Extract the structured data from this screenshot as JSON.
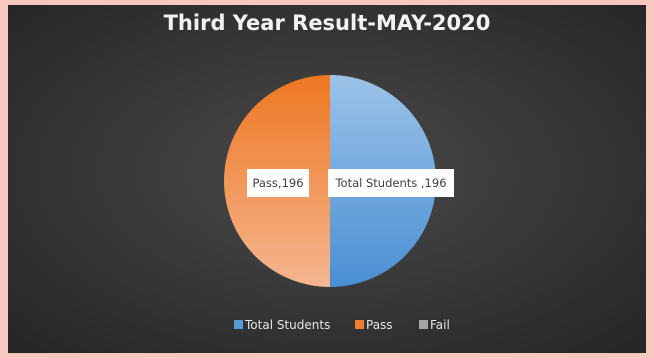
{
  "chart_data": {
    "type": "pie",
    "title": "Third Year Result-MAY-2020",
    "categories": [
      "Total Students",
      "Pass",
      "Fail"
    ],
    "values": [
      196,
      196,
      0
    ],
    "data_labels": [
      "Total Students ,196",
      "Pass,196",
      ""
    ],
    "colors": [
      "#5b9bd5",
      "#ed7d31",
      "#a5a5a5"
    ],
    "legend": {
      "position": "bottom",
      "entries": [
        "Total Students",
        "Pass",
        "Fail"
      ]
    },
    "start_angle_deg": 0,
    "direction": "clockwise"
  },
  "background_color": "#3a3a3a",
  "frame_color": "#f7c7c0"
}
